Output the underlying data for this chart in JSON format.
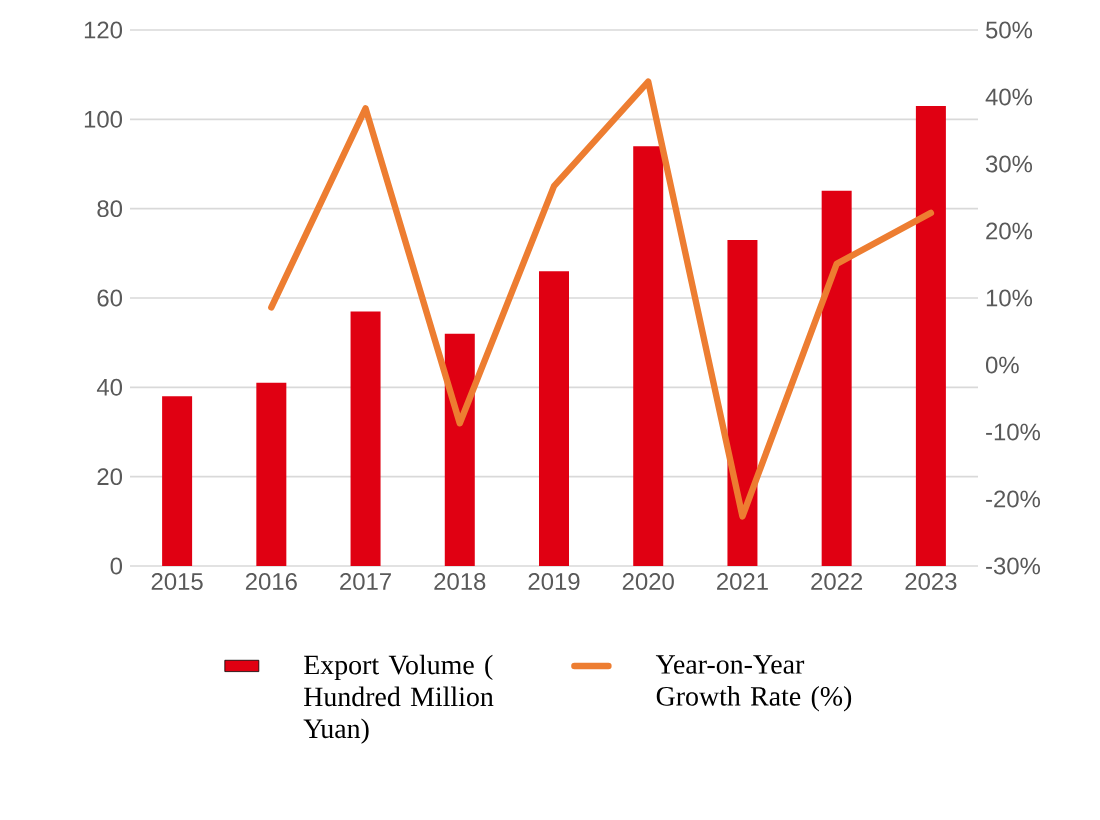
{
  "chart_data": {
    "type": "bar",
    "categories": [
      "2015",
      "2016",
      "2017",
      "2018",
      "2019",
      "2020",
      "2021",
      "2022",
      "2023"
    ],
    "series": [
      {
        "name": "Export Volume ( Hundred Million Yuan)",
        "color": "#e00012",
        "values": [
          38,
          41,
          57,
          52,
          66,
          94,
          73,
          84,
          103
        ]
      },
      {
        "name": "Year-on-Year Growth Rate (%)",
        "type": "line",
        "axis": "y2",
        "color": "#ed7d31",
        "values": [
          null,
          8.6,
          38.3,
          -8.7,
          26.7,
          42.3,
          -22.6,
          15.1,
          22.7
        ]
      }
    ],
    "ylim": [
      0,
      120
    ],
    "yticks": [
      0,
      20,
      40,
      60,
      80,
      100,
      120
    ],
    "y2lim": [
      -30,
      50
    ],
    "y2ticks": [
      {
        "value": -30,
        "label": "-30%"
      },
      {
        "value": -20,
        "label": "-20%"
      },
      {
        "value": -10,
        "label": "-10%"
      },
      {
        "value": 0,
        "label": "0%"
      },
      {
        "value": 10,
        "label": "10%"
      },
      {
        "value": 20,
        "label": "20%"
      },
      {
        "value": 30,
        "label": "30%"
      },
      {
        "value": 40,
        "label": "40%"
      },
      {
        "value": 50,
        "label": "50%"
      }
    ],
    "grid": "y",
    "legend": "bottom"
  }
}
